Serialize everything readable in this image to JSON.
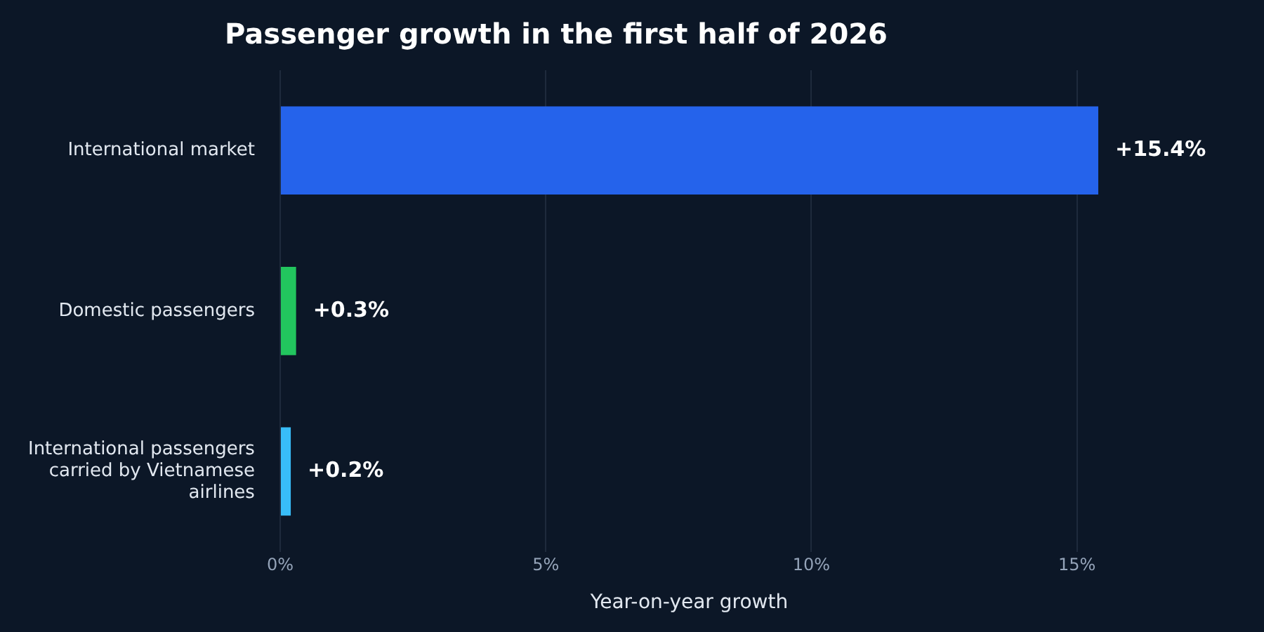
{
  "chart_data": {
    "type": "bar",
    "orientation": "horizontal",
    "title": "Passenger growth in the first half of 2026",
    "xlabel": "Year-on-year growth",
    "categories": [
      "International market",
      "Domestic passengers",
      "International passengers carried by Vietnamese airlines"
    ],
    "values": [
      15.4,
      0.3,
      0.2
    ],
    "colors": [
      "#2563eb",
      "#22c55e",
      "#38bdf8"
    ],
    "value_labels": [
      "+15.4%",
      "+0.3%",
      "+0.2%"
    ],
    "xlim": [
      0,
      15.4
    ],
    "xticks": [
      {
        "value": 0,
        "label": "0%"
      },
      {
        "value": 5,
        "label": "5%"
      },
      {
        "value": 10,
        "label": "10%"
      },
      {
        "value": 15,
        "label": "15%"
      }
    ],
    "grid": "x",
    "legend": false
  }
}
